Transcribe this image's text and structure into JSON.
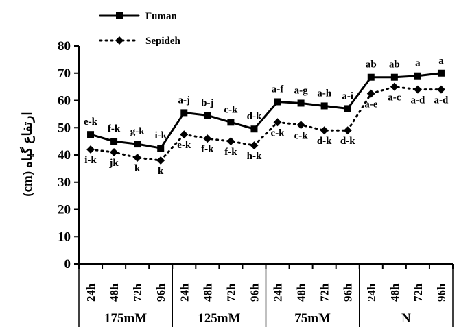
{
  "chart_data": {
    "type": "line",
    "ylabel": "(cm) ارتفاع گیاه",
    "ylim": [
      0,
      80
    ],
    "yticks": [
      0,
      10,
      20,
      30,
      40,
      50,
      60,
      70,
      80
    ],
    "legend_position": "top-left",
    "grid": false,
    "groups": [
      {
        "label": "175mM",
        "categories": [
          "24h",
          "48h",
          "72h",
          "96h"
        ]
      },
      {
        "label": "125mM",
        "categories": [
          "24h",
          "48h",
          "72h",
          "96h"
        ]
      },
      {
        "label": "75mM",
        "categories": [
          "24h",
          "48h",
          "72h",
          "96h"
        ]
      },
      {
        "label": "N",
        "categories": [
          "24h",
          "48h",
          "72h",
          "96h"
        ]
      }
    ],
    "series": [
      {
        "name": "Fuman",
        "line_style": "solid",
        "marker": "square",
        "color": "#000000",
        "values": [
          47.5,
          45,
          44,
          42.5,
          55.5,
          54.5,
          52,
          49.5,
          59.5,
          59,
          58,
          57,
          68.5,
          68.5,
          69,
          70
        ],
        "labels": [
          "e-k",
          "f-k",
          "g-k",
          "i-k",
          "a-j",
          "b-j",
          "c-k",
          "d-k",
          "a-f",
          "a-g",
          "a-h",
          "a-i",
          "ab",
          "ab",
          "a",
          "a"
        ],
        "label_position": "above"
      },
      {
        "name": "Sepideh",
        "line_style": "dotted",
        "marker": "diamond",
        "color": "#000000",
        "values": [
          42,
          41,
          39,
          38,
          47.5,
          46,
          45,
          43.5,
          52,
          51,
          49,
          49,
          62.5,
          65,
          64,
          64
        ],
        "labels": [
          "i-k",
          "jk",
          "k",
          "k",
          "e-k",
          "f-k",
          "f-k",
          "h-k",
          "c-k",
          "c-k",
          "d-k",
          "d-k",
          "a-e",
          "a-c",
          "a-d",
          "a-d"
        ],
        "label_position": "below"
      }
    ]
  }
}
